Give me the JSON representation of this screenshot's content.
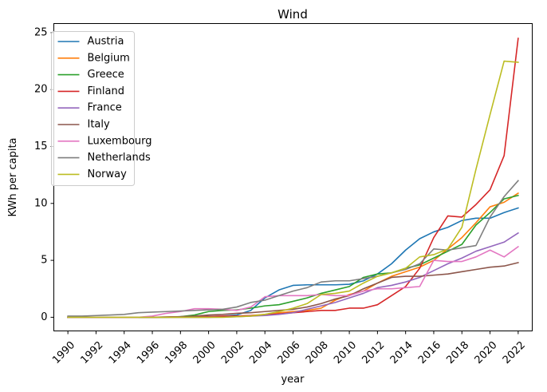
{
  "chart_data": {
    "type": "line",
    "title": "Wind",
    "xlabel": "year",
    "ylabel": "KWh per capita",
    "xlim": [
      1989,
      2023
    ],
    "ylim": [
      -1.2,
      25.8
    ],
    "x_ticks": [
      1990,
      1992,
      1994,
      1996,
      1998,
      2000,
      2002,
      2004,
      2006,
      2008,
      2010,
      2012,
      2014,
      2016,
      2018,
      2020,
      2022
    ],
    "y_ticks": [
      0,
      5,
      10,
      15,
      20,
      25
    ],
    "grid": false,
    "legend_position": "top-left",
    "x": [
      1990,
      1991,
      1992,
      1993,
      1994,
      1995,
      1996,
      1997,
      1998,
      1999,
      2000,
      2001,
      2002,
      2003,
      2004,
      2005,
      2006,
      2007,
      2008,
      2009,
      2010,
      2011,
      2012,
      2013,
      2014,
      2015,
      2016,
      2017,
      2018,
      2019,
      2020,
      2021,
      2022
    ],
    "series": [
      {
        "name": "Austria",
        "color": "#1f77b4",
        "values": [
          0.0,
          0.0,
          0.0,
          0.0,
          0.0,
          0.0,
          0.0,
          0.02,
          0.05,
          0.05,
          0.08,
          0.1,
          0.2,
          0.6,
          1.7,
          2.4,
          2.8,
          2.85,
          2.85,
          2.85,
          2.9,
          3.2,
          3.8,
          4.7,
          5.9,
          6.9,
          7.5,
          7.9,
          8.5,
          8.7,
          8.7,
          9.2,
          9.6
        ]
      },
      {
        "name": "Belgium",
        "color": "#ff7f0e",
        "values": [
          0.0,
          0.0,
          0.0,
          0.0,
          0.0,
          0.0,
          0.0,
          0.0,
          0.0,
          0.0,
          0.0,
          0.05,
          0.1,
          0.15,
          0.25,
          0.4,
          0.5,
          0.6,
          0.8,
          1.5,
          2.0,
          2.3,
          3.0,
          3.6,
          4.0,
          4.4,
          5.0,
          6.0,
          7.0,
          8.3,
          9.7,
          10.1,
          10.9
        ]
      },
      {
        "name": "Greece",
        "color": "#2ca02c",
        "values": [
          0.0,
          0.0,
          0.0,
          0.0,
          0.0,
          0.0,
          0.0,
          0.0,
          0.05,
          0.2,
          0.5,
          0.6,
          0.65,
          0.8,
          1.0,
          1.1,
          1.4,
          1.7,
          2.1,
          2.4,
          2.7,
          3.5,
          3.8,
          3.9,
          4.3,
          4.6,
          5.2,
          5.8,
          6.4,
          8.1,
          9.2,
          10.4,
          10.7
        ]
      },
      {
        "name": "Finland",
        "color": "#d62728",
        "values": [
          0.0,
          0.0,
          0.0,
          0.0,
          0.0,
          0.0,
          0.0,
          0.02,
          0.04,
          0.05,
          0.06,
          0.1,
          0.1,
          0.15,
          0.2,
          0.3,
          0.4,
          0.5,
          0.6,
          0.6,
          0.8,
          0.8,
          1.1,
          1.9,
          2.7,
          4.3,
          7.0,
          8.9,
          8.8,
          9.9,
          11.2,
          14.2,
          24.5
        ]
      },
      {
        "name": "France",
        "color": "#9467bd",
        "values": [
          0.0,
          0.0,
          0.0,
          0.0,
          0.0,
          0.0,
          0.0,
          0.0,
          0.0,
          0.0,
          0.0,
          0.01,
          0.05,
          0.1,
          0.15,
          0.25,
          0.4,
          0.7,
          1.0,
          1.3,
          1.7,
          2.1,
          2.6,
          2.8,
          3.1,
          3.5,
          4.1,
          4.7,
          5.2,
          5.8,
          6.2,
          6.6,
          7.4
        ]
      },
      {
        "name": "Italy",
        "color": "#8c564b",
        "values": [
          0.0,
          0.0,
          0.0,
          0.0,
          0.0,
          0.0,
          0.0,
          0.01,
          0.05,
          0.1,
          0.2,
          0.25,
          0.35,
          0.4,
          0.5,
          0.6,
          0.7,
          0.9,
          1.2,
          1.6,
          1.9,
          2.5,
          3.0,
          3.5,
          3.6,
          3.6,
          3.7,
          3.8,
          4.0,
          4.2,
          4.4,
          4.5,
          4.8
        ]
      },
      {
        "name": "Luxembourg",
        "color": "#e377c2",
        "values": [
          0.0,
          0.0,
          0.0,
          0.0,
          0.0,
          0.0,
          0.1,
          0.35,
          0.5,
          0.75,
          0.75,
          0.7,
          0.6,
          0.9,
          1.8,
          1.9,
          1.9,
          1.9,
          2.0,
          1.9,
          1.9,
          2.3,
          2.5,
          2.5,
          2.6,
          2.7,
          5.0,
          4.9,
          4.9,
          5.3,
          5.9,
          5.3,
          6.2
        ]
      },
      {
        "name": "Netherlands",
        "color": "#7f7f7f",
        "values": [
          0.1,
          0.1,
          0.15,
          0.2,
          0.25,
          0.4,
          0.45,
          0.5,
          0.55,
          0.6,
          0.65,
          0.7,
          0.9,
          1.3,
          1.5,
          1.9,
          2.3,
          2.6,
          3.1,
          3.2,
          3.2,
          3.4,
          3.6,
          3.9,
          4.2,
          4.7,
          6.0,
          5.9,
          6.1,
          6.3,
          8.8,
          10.6,
          12.0
        ]
      },
      {
        "name": "Norway",
        "color": "#bcbd22",
        "values": [
          0.0,
          0.0,
          0.0,
          0.0,
          0.0,
          0.0,
          0.0,
          0.0,
          0.0,
          0.0,
          0.0,
          0.0,
          0.05,
          0.1,
          0.25,
          0.5,
          0.8,
          1.2,
          2.0,
          2.1,
          2.3,
          3.0,
          3.6,
          3.9,
          4.3,
          5.3,
          5.5,
          6.0,
          7.9,
          13.0,
          17.8,
          22.5,
          22.4
        ]
      }
    ]
  }
}
